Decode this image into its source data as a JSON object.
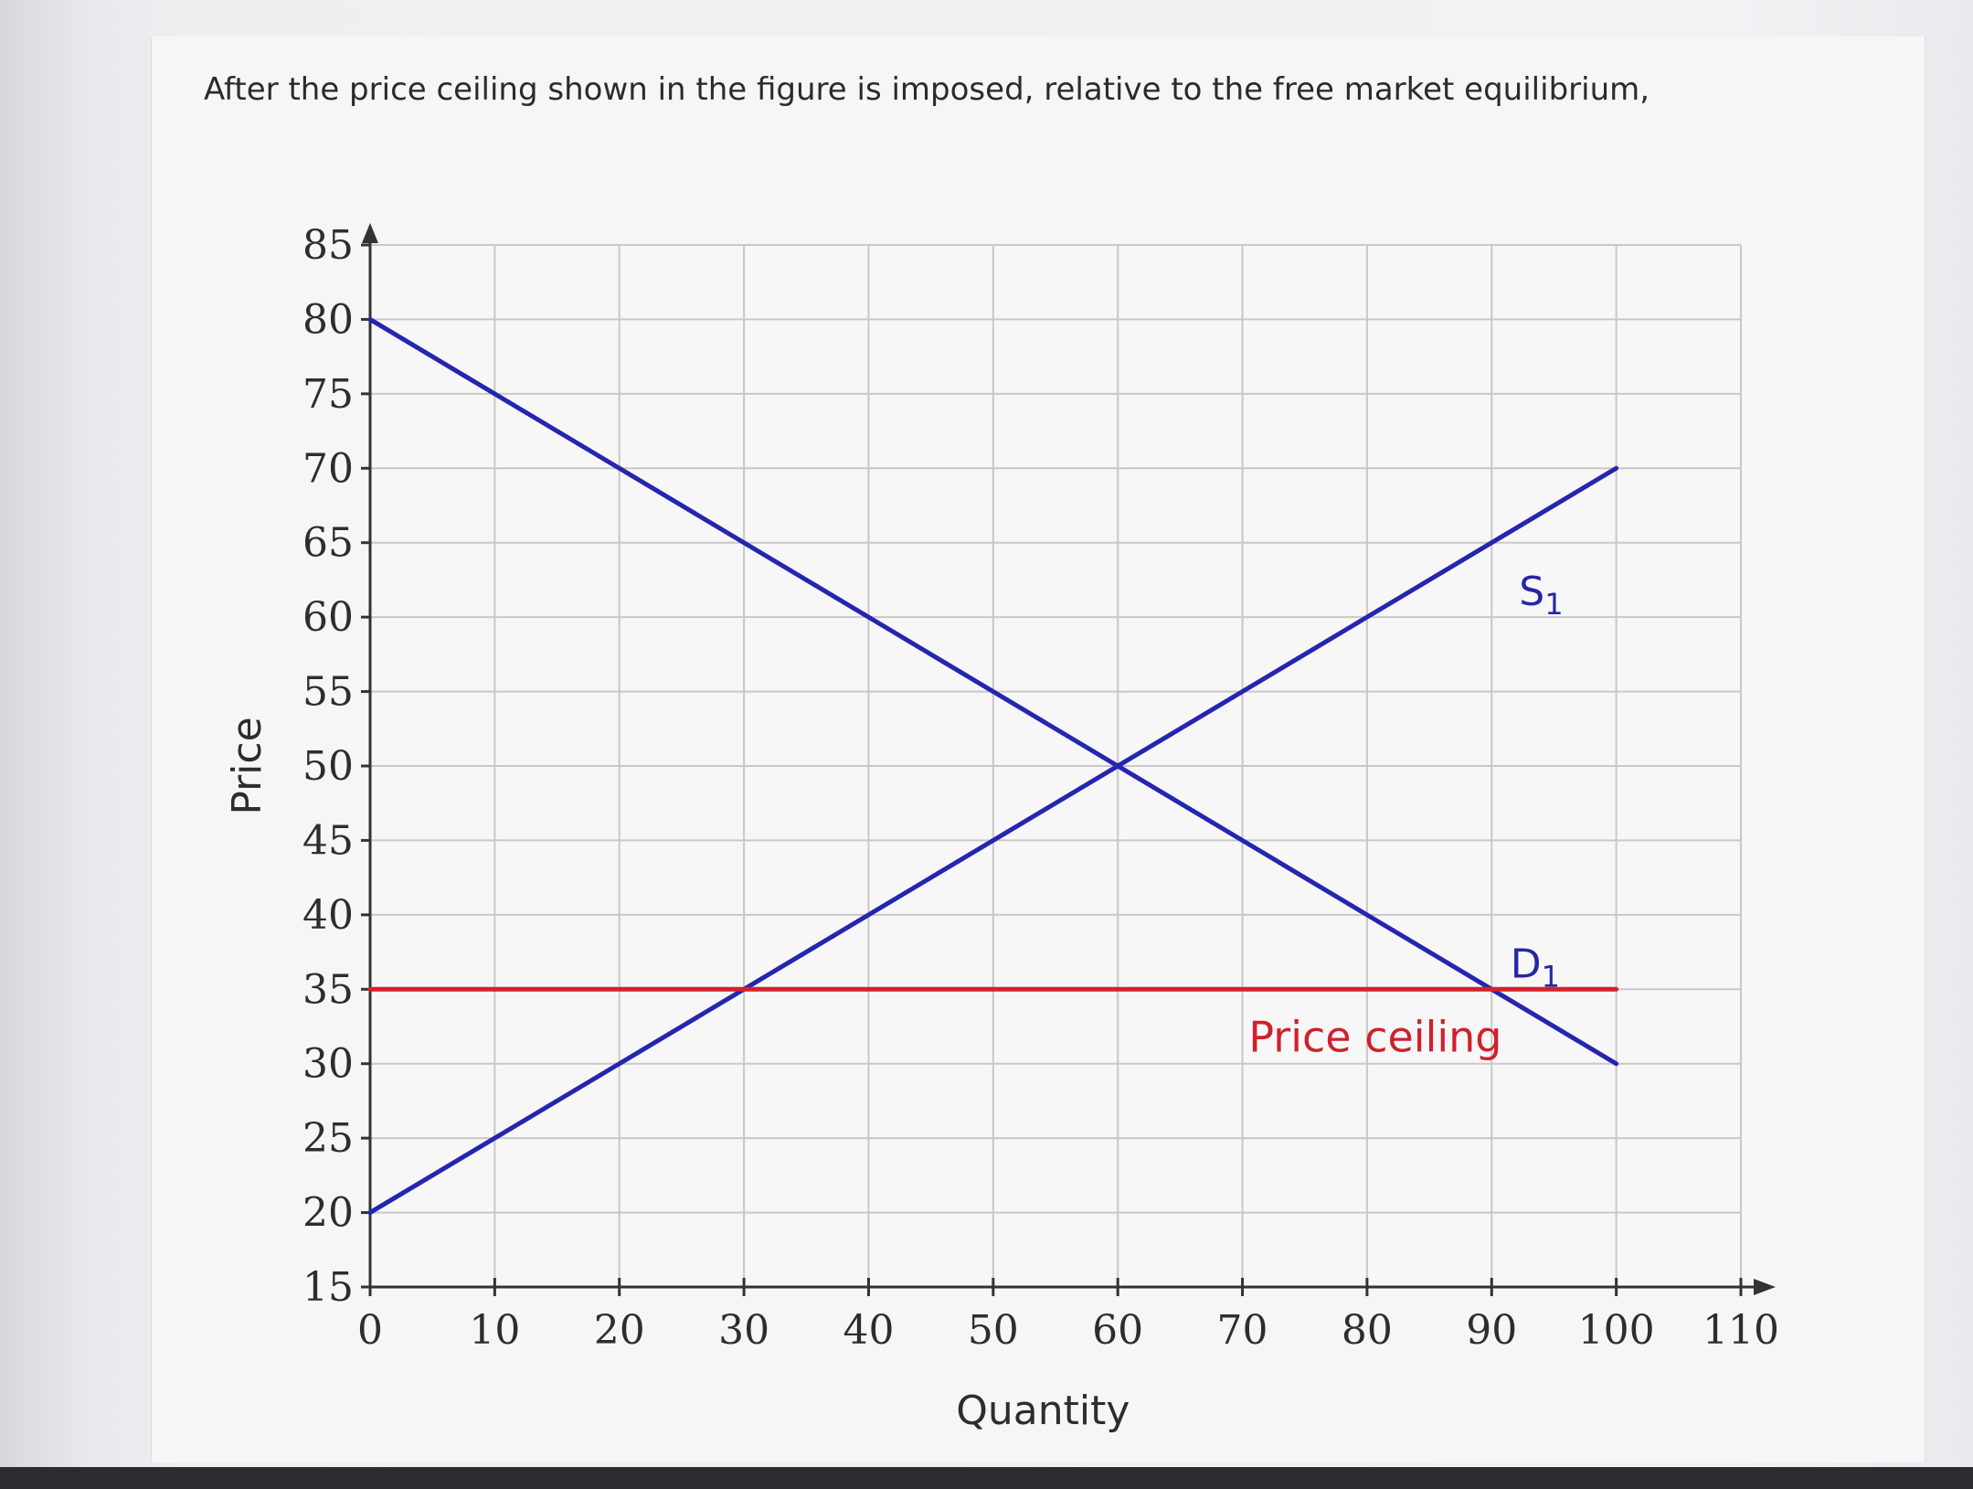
{
  "question": {
    "text": "After the price ceiling shown in the figure is imposed, relative to the free market equilibrium,"
  },
  "colors": {
    "curve": "#2525b0",
    "ceiling": "#d8202a",
    "grid": "#c8c8c8",
    "axis": "#333333"
  },
  "chart_data": {
    "type": "line",
    "xlabel": "Quantity",
    "ylabel": "Price",
    "xlim": [
      0,
      110
    ],
    "ylim": [
      15,
      85
    ],
    "x_ticks": [
      0,
      10,
      20,
      30,
      40,
      50,
      60,
      70,
      80,
      90,
      100,
      110
    ],
    "y_ticks": [
      15,
      20,
      25,
      30,
      35,
      40,
      45,
      50,
      55,
      60,
      65,
      70,
      75,
      80,
      85
    ],
    "grid": true,
    "series": [
      {
        "name": "S",
        "subscript": "1",
        "x": [
          0,
          100
        ],
        "y": [
          20,
          70
        ]
      },
      {
        "name": "D",
        "subscript": "1",
        "x": [
          0,
          100
        ],
        "y": [
          80,
          30
        ]
      },
      {
        "name": "Price ceiling",
        "x": [
          0,
          100
        ],
        "y": [
          35,
          35
        ]
      }
    ]
  }
}
